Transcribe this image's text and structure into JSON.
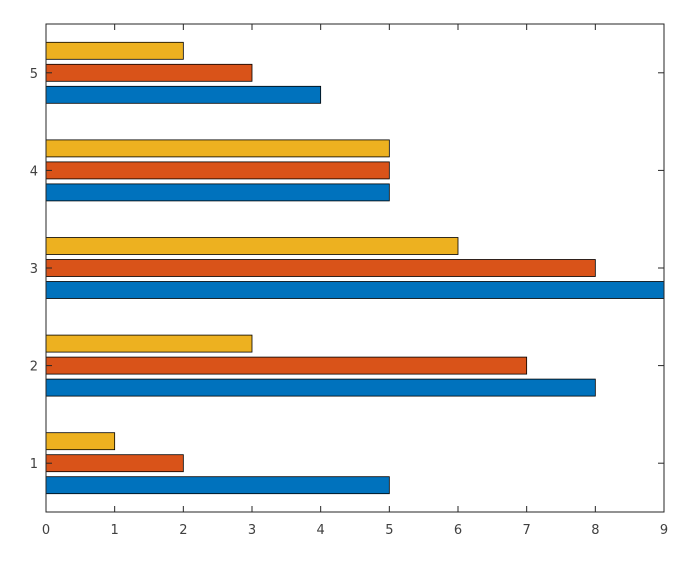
{
  "chart_data": {
    "type": "bar",
    "orientation": "horizontal",
    "categories": [
      "1",
      "2",
      "3",
      "4",
      "5"
    ],
    "series": [
      {
        "values": [
          5,
          8,
          9,
          5,
          4
        ],
        "color": "#0072BD"
      },
      {
        "values": [
          2,
          7,
          8,
          5,
          3
        ],
        "color": "#D95319"
      },
      {
        "values": [
          1,
          3,
          6,
          5,
          2
        ],
        "color": "#EDB120"
      }
    ],
    "x_ticks": [
      "0",
      "1",
      "2",
      "3",
      "4",
      "5",
      "6",
      "7",
      "8",
      "9"
    ],
    "xlim": [
      0,
      9
    ],
    "ylim": [
      0.5,
      5.5
    ],
    "grid": false,
    "legend": "none",
    "title": "",
    "xlabel": "",
    "ylabel": ""
  }
}
